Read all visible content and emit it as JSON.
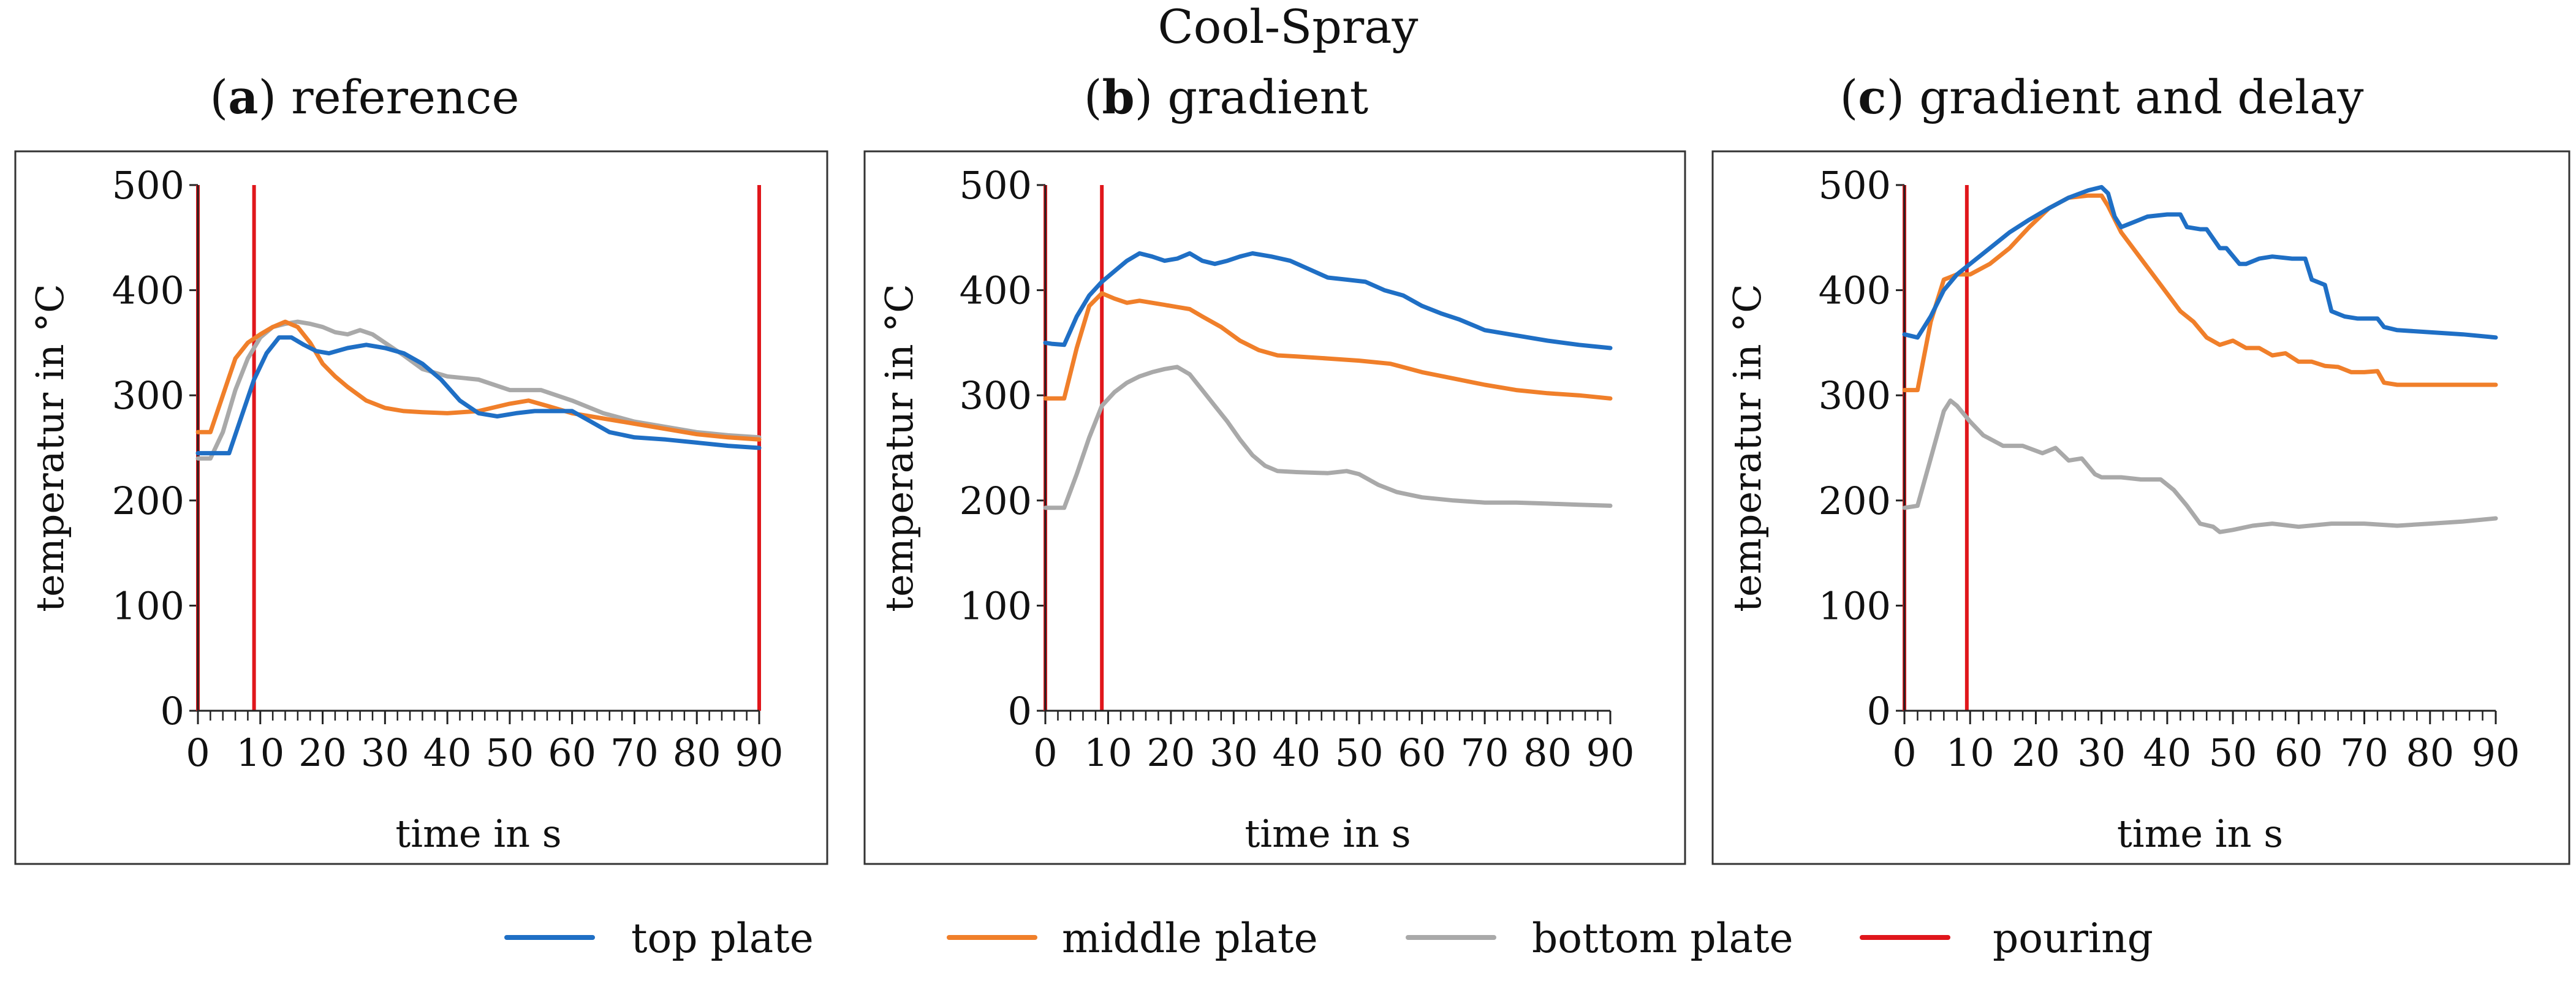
{
  "figure": {
    "title": "Cool-Spray"
  },
  "colors": {
    "top": "#1f6fc5",
    "middle": "#f07f2a",
    "bottom": "#a9a9a9",
    "pouring": "#e0161b",
    "axis": "#222222",
    "frame": "#333333"
  },
  "legend": [
    {
      "key": "top",
      "label": "top plate"
    },
    {
      "key": "middle",
      "label": "middle plate"
    },
    {
      "key": "bottom",
      "label": "bottom plate"
    },
    {
      "key": "pouring",
      "label": "pouring"
    }
  ],
  "chart_data": [
    {
      "type": "line",
      "letter": "a",
      "title_rest": ") reference",
      "xlabel": "time in s",
      "ylabel": "temperatur in °C",
      "xlim": [
        0,
        90
      ],
      "ylim": [
        0,
        500
      ],
      "xticks": [
        0,
        10,
        20,
        30,
        40,
        50,
        60,
        70,
        80,
        90
      ],
      "yticks": [
        0,
        100,
        200,
        300,
        400,
        500
      ],
      "pouring": [
        0,
        9,
        90
      ],
      "series": [
        {
          "key": "top",
          "name": "top plate",
          "x": [
            0,
            2,
            5,
            7,
            9,
            11,
            13,
            15,
            17,
            19,
            21,
            24,
            27,
            30,
            33,
            36,
            39,
            42,
            45,
            48,
            51,
            54,
            57,
            60,
            63,
            66,
            70,
            75,
            80,
            85,
            90
          ],
          "y": [
            245,
            245,
            245,
            280,
            315,
            340,
            355,
            355,
            348,
            342,
            340,
            345,
            348,
            345,
            340,
            330,
            315,
            295,
            283,
            280,
            283,
            285,
            285,
            285,
            275,
            265,
            260,
            258,
            255,
            252,
            250
          ]
        },
        {
          "key": "middle",
          "name": "middle plate",
          "x": [
            0,
            2,
            4,
            6,
            8,
            10,
            12,
            14,
            16,
            18,
            20,
            22,
            24,
            27,
            30,
            33,
            36,
            40,
            45,
            50,
            53,
            56,
            60,
            65,
            70,
            75,
            80,
            85,
            90
          ],
          "y": [
            265,
            265,
            300,
            335,
            350,
            358,
            365,
            370,
            365,
            350,
            330,
            318,
            308,
            295,
            288,
            285,
            284,
            283,
            285,
            292,
            295,
            290,
            283,
            278,
            273,
            268,
            263,
            260,
            258
          ]
        },
        {
          "key": "bottom",
          "name": "bottom plate",
          "x": [
            0,
            2,
            4,
            6,
            8,
            10,
            12,
            14,
            16,
            18,
            20,
            22,
            24,
            26,
            28,
            30,
            33,
            36,
            40,
            45,
            50,
            55,
            60,
            65,
            70,
            75,
            80,
            85,
            90
          ],
          "y": [
            240,
            240,
            265,
            305,
            335,
            355,
            365,
            368,
            370,
            368,
            365,
            360,
            358,
            362,
            358,
            350,
            338,
            325,
            318,
            315,
            305,
            305,
            295,
            283,
            275,
            270,
            265,
            262,
            260
          ]
        }
      ]
    },
    {
      "type": "line",
      "letter": "b",
      "title_rest": ") gradient",
      "xlabel": "time in s",
      "ylabel": "temperatur in °C",
      "xlim": [
        0,
        90
      ],
      "ylim": [
        0,
        500
      ],
      "xticks": [
        0,
        10,
        20,
        30,
        40,
        50,
        60,
        70,
        80,
        90
      ],
      "yticks": [
        0,
        100,
        200,
        300,
        400,
        500
      ],
      "pouring": [
        0,
        9
      ],
      "series": [
        {
          "key": "top",
          "name": "top plate",
          "x": [
            0,
            1,
            3,
            5,
            7,
            9,
            11,
            13,
            15,
            17,
            19,
            21,
            23,
            25,
            27,
            29,
            31,
            33,
            36,
            39,
            42,
            45,
            48,
            51,
            54,
            57,
            60,
            63,
            66,
            70,
            75,
            80,
            85,
            90
          ],
          "y": [
            350,
            349,
            348,
            375,
            395,
            408,
            418,
            428,
            435,
            432,
            428,
            430,
            435,
            428,
            425,
            428,
            432,
            435,
            432,
            428,
            420,
            412,
            410,
            408,
            400,
            395,
            385,
            378,
            372,
            362,
            357,
            352,
            348,
            345
          ]
        },
        {
          "key": "middle",
          "name": "middle plate",
          "x": [
            0,
            1,
            3,
            5,
            7,
            9,
            11,
            13,
            15,
            17,
            19,
            21,
            23,
            25,
            28,
            31,
            34,
            37,
            40,
            45,
            50,
            55,
            60,
            65,
            70,
            75,
            80,
            85,
            90
          ],
          "y": [
            297,
            297,
            297,
            345,
            385,
            397,
            392,
            388,
            390,
            388,
            386,
            384,
            382,
            375,
            365,
            352,
            343,
            338,
            337,
            335,
            333,
            330,
            322,
            316,
            310,
            305,
            302,
            300,
            297
          ]
        },
        {
          "key": "bottom",
          "name": "bottom plate",
          "x": [
            0,
            1,
            3,
            5,
            7,
            9,
            11,
            13,
            15,
            17,
            19,
            21,
            23,
            25,
            27,
            29,
            31,
            33,
            35,
            37,
            40,
            45,
            48,
            50,
            53,
            56,
            60,
            65,
            70,
            75,
            80,
            85,
            90
          ],
          "y": [
            193,
            193,
            193,
            225,
            260,
            290,
            303,
            312,
            318,
            322,
            325,
            327,
            320,
            305,
            290,
            275,
            258,
            243,
            233,
            228,
            227,
            226,
            228,
            225,
            215,
            208,
            203,
            200,
            198,
            198,
            197,
            196,
            195
          ]
        }
      ]
    },
    {
      "type": "line",
      "letter": "c",
      "title_rest": ") gradient and delay",
      "xlabel": "time in s",
      "ylabel": "temperatur in °C",
      "xlim": [
        0,
        90
      ],
      "ylim": [
        0,
        500
      ],
      "xticks": [
        0,
        10,
        20,
        30,
        40,
        50,
        60,
        70,
        80,
        90
      ],
      "yticks": [
        0,
        100,
        200,
        300,
        400,
        500
      ],
      "pouring": [
        0,
        9.5
      ],
      "series": [
        {
          "key": "top",
          "name": "top plate",
          "x": [
            0,
            2,
            4,
            6,
            8,
            10,
            13,
            16,
            19,
            22,
            25,
            28,
            30,
            31,
            32,
            33,
            35,
            37,
            40,
            42,
            43,
            45,
            46,
            48,
            49,
            51,
            52,
            54,
            56,
            59,
            61,
            62,
            64,
            65,
            67,
            69,
            72,
            73,
            75,
            80,
            85,
            90
          ],
          "y": [
            358,
            355,
            375,
            400,
            415,
            425,
            440,
            455,
            467,
            478,
            488,
            495,
            498,
            492,
            470,
            460,
            465,
            470,
            472,
            472,
            460,
            458,
            458,
            440,
            440,
            425,
            425,
            430,
            432,
            430,
            430,
            410,
            405,
            380,
            375,
            373,
            373,
            365,
            362,
            360,
            358,
            355
          ]
        },
        {
          "key": "middle",
          "name": "middle plate",
          "x": [
            0,
            2,
            4,
            6,
            8,
            10,
            13,
            16,
            19,
            22,
            25,
            28,
            30,
            31,
            33,
            36,
            39,
            42,
            44,
            46,
            48,
            50,
            52,
            54,
            56,
            58,
            60,
            62,
            64,
            66,
            68,
            70,
            72,
            73,
            75,
            80,
            85,
            90
          ],
          "y": [
            305,
            305,
            370,
            410,
            415,
            415,
            425,
            440,
            460,
            478,
            488,
            490,
            490,
            480,
            455,
            430,
            405,
            380,
            370,
            355,
            348,
            352,
            345,
            345,
            338,
            340,
            332,
            332,
            328,
            327,
            322,
            322,
            323,
            312,
            310,
            310,
            310,
            310
          ]
        },
        {
          "key": "bottom",
          "name": "bottom plate",
          "x": [
            0,
            2,
            4,
            6,
            7,
            8,
            10,
            12,
            15,
            18,
            21,
            23,
            25,
            27,
            29,
            30,
            33,
            36,
            39,
            41,
            43,
            45,
            47,
            48,
            50,
            53,
            56,
            60,
            65,
            70,
            75,
            80,
            85,
            90
          ],
          "y": [
            193,
            195,
            240,
            285,
            295,
            290,
            275,
            262,
            252,
            252,
            245,
            250,
            238,
            240,
            225,
            222,
            222,
            220,
            220,
            210,
            195,
            178,
            175,
            170,
            172,
            176,
            178,
            175,
            178,
            178,
            176,
            178,
            180,
            183
          ]
        }
      ]
    }
  ]
}
